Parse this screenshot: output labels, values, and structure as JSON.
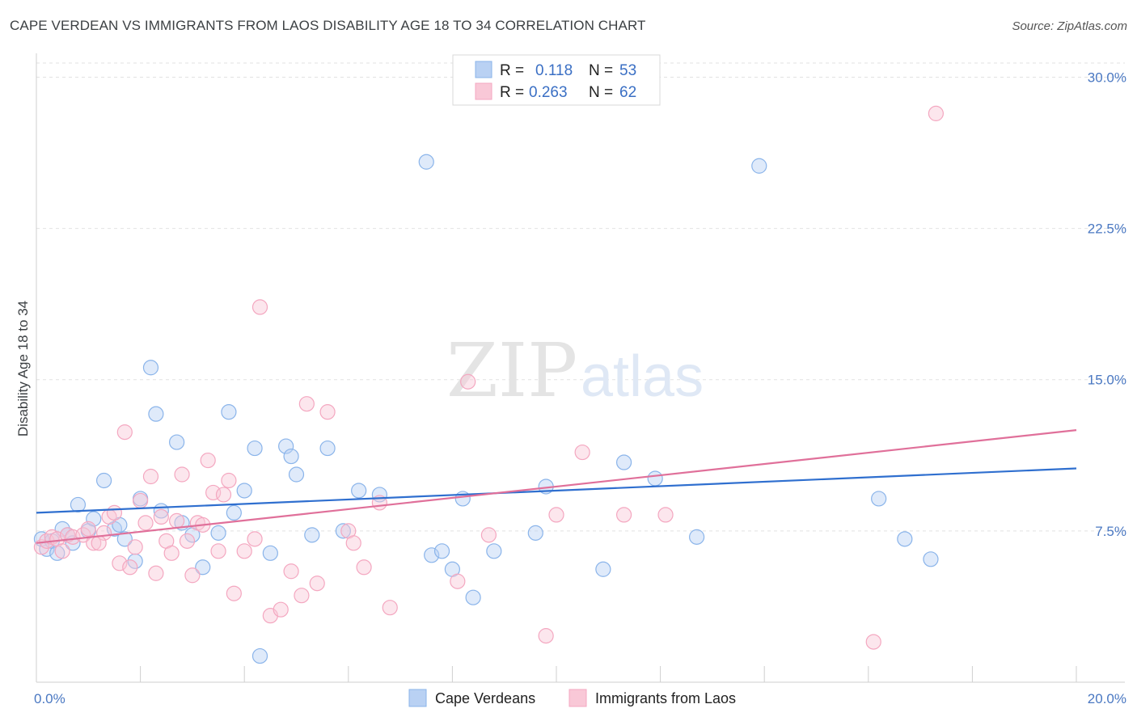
{
  "header": {
    "title": "CAPE VERDEAN VS IMMIGRANTS FROM LAOS DISABILITY AGE 18 TO 34 CORRELATION CHART",
    "source": "Source: ZipAtlas.com"
  },
  "watermark": {
    "zip": "ZIP",
    "atlas": "atlas"
  },
  "legend": {
    "items": [
      {
        "r_label": "R =",
        "r_value": "0.118",
        "n_label": "N =",
        "n_value": "53"
      },
      {
        "r_label": "R =",
        "r_value": "0.263",
        "n_label": "N =",
        "n_value": "62"
      }
    ]
  },
  "chart_data": {
    "type": "scatter",
    "title": "CAPE VERDEAN VS IMMIGRANTS FROM LAOS DISABILITY AGE 18 TO 34 CORRELATION CHART",
    "xlabel": "",
    "ylabel": "Disability Age 18 to 34",
    "xlim": [
      0,
      20
    ],
    "ylim": [
      0,
      30.7
    ],
    "x_tick_labels": [
      {
        "value": 0,
        "label": "0.0%"
      },
      {
        "value": 20,
        "label": "20.0%"
      }
    ],
    "y_tick_labels": [
      {
        "value": 7.5,
        "label": "7.5%"
      },
      {
        "value": 15,
        "label": "15.0%"
      },
      {
        "value": 22.5,
        "label": "22.5%"
      },
      {
        "value": 30,
        "label": "30.0%"
      }
    ],
    "grid": true,
    "legend_position": "top-center",
    "series": [
      {
        "name": "Cape Verdeans",
        "color": "#8ab4ea",
        "trend_color": "#2f6fcf",
        "trend": [
          [
            0,
            8.4
          ],
          [
            20,
            10.6
          ]
        ],
        "points": [
          [
            0.1,
            7.1
          ],
          [
            0.2,
            6.6
          ],
          [
            0.3,
            7.0
          ],
          [
            0.4,
            6.4
          ],
          [
            0.5,
            7.6
          ],
          [
            0.6,
            7.3
          ],
          [
            0.7,
            6.9
          ],
          [
            0.8,
            8.8
          ],
          [
            1.0,
            7.5
          ],
          [
            1.1,
            8.1
          ],
          [
            1.3,
            10.0
          ],
          [
            1.5,
            7.6
          ],
          [
            1.6,
            7.8
          ],
          [
            1.7,
            7.1
          ],
          [
            1.9,
            6.0
          ],
          [
            2.0,
            9.1
          ],
          [
            2.2,
            15.6
          ],
          [
            2.3,
            13.3
          ],
          [
            2.4,
            8.5
          ],
          [
            2.7,
            11.9
          ],
          [
            2.8,
            7.9
          ],
          [
            3.0,
            7.3
          ],
          [
            3.2,
            5.7
          ],
          [
            3.5,
            7.4
          ],
          [
            3.7,
            13.4
          ],
          [
            3.8,
            8.4
          ],
          [
            4.0,
            9.5
          ],
          [
            4.2,
            11.6
          ],
          [
            4.5,
            6.4
          ],
          [
            4.8,
            11.7
          ],
          [
            4.9,
            11.2
          ],
          [
            5.0,
            10.3
          ],
          [
            5.3,
            7.3
          ],
          [
            5.6,
            11.6
          ],
          [
            5.9,
            7.5
          ],
          [
            6.2,
            9.5
          ],
          [
            6.6,
            9.3
          ],
          [
            7.5,
            25.8
          ],
          [
            7.6,
            6.3
          ],
          [
            7.8,
            6.5
          ],
          [
            8.0,
            5.6
          ],
          [
            8.2,
            9.1
          ],
          [
            8.4,
            4.2
          ],
          [
            8.8,
            6.5
          ],
          [
            9.6,
            7.4
          ],
          [
            9.8,
            9.7
          ],
          [
            10.9,
            5.6
          ],
          [
            11.3,
            10.9
          ],
          [
            11.9,
            10.1
          ],
          [
            12.7,
            7.2
          ],
          [
            13.9,
            25.6
          ],
          [
            16.2,
            9.1
          ],
          [
            16.7,
            7.1
          ],
          [
            17.2,
            6.1
          ],
          [
            4.3,
            1.3
          ]
        ]
      },
      {
        "name": "Immigrants from Laos",
        "color": "#f4a7c0",
        "trend_color": "#e0709a",
        "trend": [
          [
            0,
            6.9
          ],
          [
            20,
            12.5
          ]
        ],
        "points": [
          [
            0.1,
            6.7
          ],
          [
            0.2,
            7.0
          ],
          [
            0.3,
            7.2
          ],
          [
            0.4,
            7.1
          ],
          [
            0.6,
            7.3
          ],
          [
            0.7,
            7.2
          ],
          [
            0.9,
            7.3
          ],
          [
            1.0,
            7.6
          ],
          [
            1.1,
            6.9
          ],
          [
            1.3,
            7.4
          ],
          [
            1.4,
            8.2
          ],
          [
            1.5,
            8.4
          ],
          [
            1.6,
            5.9
          ],
          [
            1.7,
            12.4
          ],
          [
            1.8,
            5.7
          ],
          [
            1.9,
            6.7
          ],
          [
            2.0,
            9.0
          ],
          [
            2.1,
            7.9
          ],
          [
            2.2,
            10.2
          ],
          [
            2.3,
            5.4
          ],
          [
            2.4,
            8.2
          ],
          [
            2.5,
            7.0
          ],
          [
            2.6,
            6.4
          ],
          [
            2.7,
            8.0
          ],
          [
            2.8,
            10.3
          ],
          [
            2.9,
            7.0
          ],
          [
            3.0,
            5.3
          ],
          [
            3.1,
            7.9
          ],
          [
            3.2,
            7.8
          ],
          [
            3.3,
            11.0
          ],
          [
            3.4,
            9.4
          ],
          [
            3.5,
            6.5
          ],
          [
            3.6,
            9.3
          ],
          [
            3.7,
            10.0
          ],
          [
            3.8,
            4.4
          ],
          [
            4.0,
            6.5
          ],
          [
            4.2,
            7.1
          ],
          [
            4.3,
            18.6
          ],
          [
            4.5,
            3.3
          ],
          [
            4.7,
            3.6
          ],
          [
            4.9,
            5.5
          ],
          [
            5.1,
            4.3
          ],
          [
            5.2,
            13.8
          ],
          [
            5.4,
            4.9
          ],
          [
            5.6,
            13.4
          ],
          [
            6.0,
            7.5
          ],
          [
            6.1,
            6.9
          ],
          [
            6.3,
            5.7
          ],
          [
            6.6,
            8.9
          ],
          [
            6.8,
            3.7
          ],
          [
            8.1,
            5.0
          ],
          [
            8.3,
            14.9
          ],
          [
            8.7,
            7.3
          ],
          [
            9.8,
            2.3
          ],
          [
            10.0,
            8.3
          ],
          [
            10.5,
            11.4
          ],
          [
            11.3,
            8.3
          ],
          [
            12.1,
            8.3
          ],
          [
            16.1,
            2.0
          ],
          [
            17.3,
            28.2
          ],
          [
            0.5,
            6.5
          ],
          [
            1.2,
            6.9
          ]
        ]
      }
    ]
  },
  "bottom_legend": {
    "items": [
      {
        "label": "Cape Verdeans",
        "color": "#b9d1f3",
        "border": "#8ab4ea"
      },
      {
        "label": "Immigrants from Laos",
        "color": "#f9c8d7",
        "border": "#f4a7c0"
      }
    ]
  }
}
